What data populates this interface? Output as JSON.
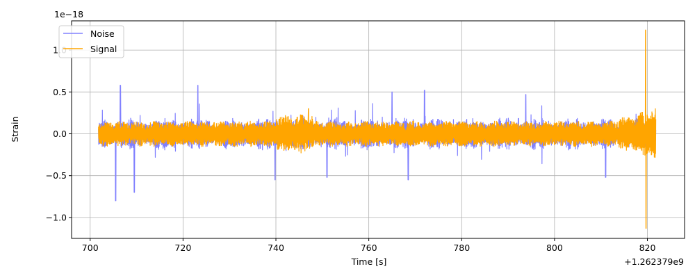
{
  "chart_data": {
    "type": "line",
    "title": "",
    "xlabel": "Time [s]",
    "ylabel": "Strain",
    "x_offset_label": "+1.262379e9",
    "y_scale_label": "1e−18",
    "xlim": [
      696,
      828
    ],
    "ylim": [
      -1.25,
      1.35
    ],
    "x_ticks": [
      700,
      720,
      740,
      760,
      780,
      800,
      820
    ],
    "x_tick_labels": [
      "700",
      "720",
      "740",
      "760",
      "780",
      "800",
      "820"
    ],
    "y_ticks": [
      -1.0,
      -0.5,
      0.0,
      0.5,
      1.0
    ],
    "y_tick_labels": [
      "−1.0",
      "−0.5",
      "0.0",
      "0.5",
      "1.0"
    ],
    "grid": true,
    "legend_position": "top-left",
    "series": [
      {
        "name": "Noise",
        "color": "#8080ff",
        "x_range": [
          701.8,
          821.8
        ],
        "typical_amplitude": 0.2,
        "notable_points": [
          {
            "x": 706.5,
            "y": 0.58
          },
          {
            "x": 705.5,
            "y": -0.8
          },
          {
            "x": 709.5,
            "y": -0.7
          },
          {
            "x": 723.2,
            "y": 0.58
          },
          {
            "x": 739.8,
            "y": -0.55
          },
          {
            "x": 751,
            "y": -0.52
          },
          {
            "x": 768.5,
            "y": -0.55
          },
          {
            "x": 765,
            "y": 0.5
          },
          {
            "x": 772,
            "y": 0.52
          },
          {
            "x": 793.8,
            "y": 0.47
          },
          {
            "x": 811,
            "y": -0.52
          }
        ]
      },
      {
        "name": "Signal",
        "color": "#ffa500",
        "x_range": [
          701.8,
          821.8
        ],
        "typical_amplitude": 0.14,
        "notable_points": [
          {
            "x": 747,
            "y": 0.3
          },
          {
            "x": 819.6,
            "y": 1.24
          },
          {
            "x": 819.7,
            "y": -1.13
          }
        ]
      }
    ]
  }
}
